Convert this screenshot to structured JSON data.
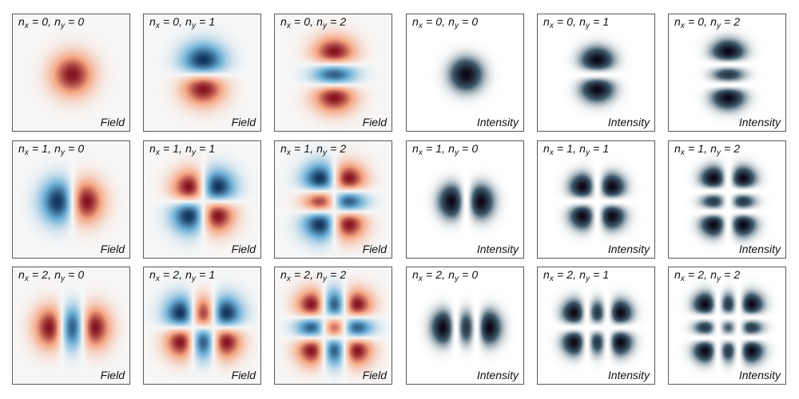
{
  "figure": {
    "columns": [
      {
        "ny": 0,
        "kind": "field"
      },
      {
        "ny": 1,
        "kind": "field"
      },
      {
        "ny": 2,
        "kind": "field"
      },
      {
        "ny": 0,
        "kind": "intensity"
      },
      {
        "ny": 1,
        "kind": "intensity"
      },
      {
        "ny": 2,
        "kind": "intensity"
      }
    ],
    "rows": [
      {
        "nx": 0
      },
      {
        "nx": 1
      },
      {
        "nx": 2
      }
    ],
    "labels": {
      "field": "Field",
      "intensity": "Intensity",
      "n": "n",
      "sub_x": "x",
      "sub_y": "y",
      "equals": " = ",
      "separator": ", "
    },
    "colors": {
      "field_positive": "#1f5fa8",
      "field_negative": "#b2182b",
      "field_zero": "#f7f7f7",
      "intensity_peak": "#0c0717",
      "intensity_mid": "#3d5a6c",
      "intensity_zero": "#ffffff",
      "border": "#5a5a5a"
    }
  }
}
